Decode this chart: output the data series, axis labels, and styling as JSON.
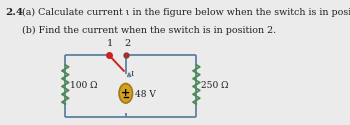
{
  "problem_number": "2.4",
  "text_a": "(a) Calculate current ι in the figure below when the switch is in position 1.",
  "text_b": "(b) Find the current when the switch is in position 2.",
  "bg_color": "#ebebeb",
  "resistor_left_label": "100 Ω",
  "resistor_right_label": "250 Ω",
  "battery_label": "48 V",
  "switch_pos1": "1",
  "switch_pos2": "2",
  "current_label": "ι",
  "box_color": "#6080a0",
  "resistor_color": "#4a8a4a",
  "battery_fill": "#d4a020",
  "battery_edge": "#a07818",
  "switch_line_color": "#cc2222",
  "switch_dot1_color": "#cc2222",
  "switch_dot2_color": "#993333",
  "arrow_color": "#6080a0",
  "text_color": "#222222",
  "pn_color": "#222222"
}
